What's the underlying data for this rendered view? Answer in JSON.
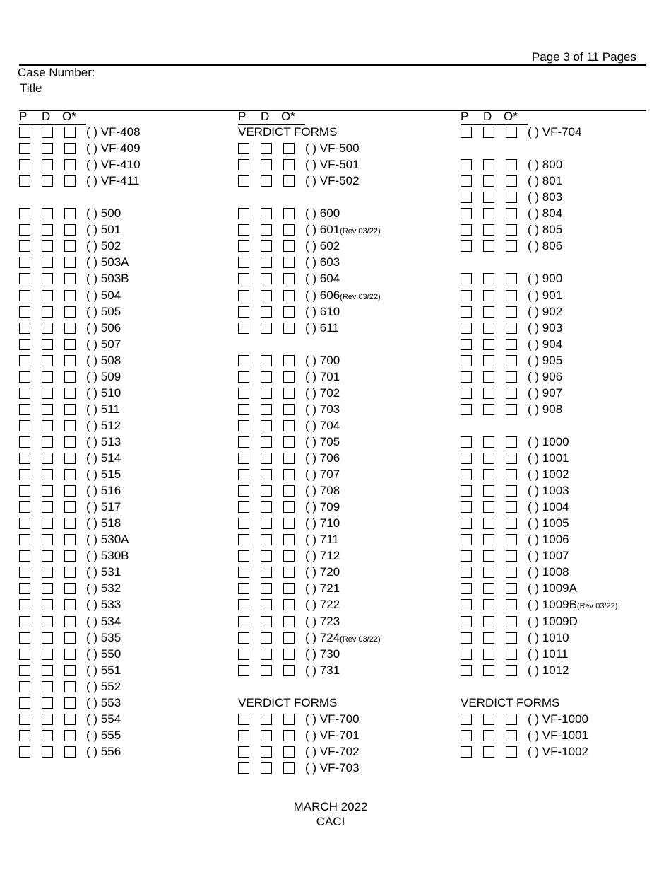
{
  "page_label": "Page 3 of 11 Pages",
  "case_number_label": "Case Number:",
  "title_label": "Title",
  "column_headers": {
    "p": "P",
    "d": "D",
    "o": "O*"
  },
  "columns": [
    [
      {
        "code": "VF-408"
      },
      {
        "code": "VF-409"
      },
      {
        "code": "VF-410"
      },
      {
        "code": "VF-411"
      },
      null,
      {
        "code": "500"
      },
      {
        "code": "501"
      },
      {
        "code": "502"
      },
      {
        "code": "503A"
      },
      {
        "code": "503B"
      },
      {
        "code": "504"
      },
      {
        "code": "505"
      },
      {
        "code": "506"
      },
      {
        "code": "507"
      },
      {
        "code": "508"
      },
      {
        "code": "509"
      },
      {
        "code": "510"
      },
      {
        "code": "511"
      },
      {
        "code": "512"
      },
      {
        "code": "513"
      },
      {
        "code": "514"
      },
      {
        "code": "515"
      },
      {
        "code": "516"
      },
      {
        "code": "517"
      },
      {
        "code": "518"
      },
      {
        "code": "530A"
      },
      {
        "code": "530B"
      },
      {
        "code": "531"
      },
      {
        "code": "532"
      },
      {
        "code": "533"
      },
      {
        "code": "534"
      },
      {
        "code": "535"
      },
      {
        "code": "550"
      },
      {
        "code": "551"
      },
      {
        "code": "552"
      },
      {
        "code": "553"
      },
      {
        "code": "554"
      },
      {
        "code": "555"
      },
      {
        "code": "556"
      }
    ],
    [
      {
        "heading": "VERDICT FORMS"
      },
      {
        "code": "VF-500"
      },
      {
        "code": "VF-501"
      },
      {
        "code": "VF-502"
      },
      null,
      {
        "code": "600"
      },
      {
        "code": "601",
        "rev": "(Rev 03/22)"
      },
      {
        "code": "602"
      },
      {
        "code": "603"
      },
      {
        "code": "604"
      },
      {
        "code": "606",
        "rev": "(Rev 03/22)"
      },
      {
        "code": "610"
      },
      {
        "code": "611"
      },
      null,
      {
        "code": "700"
      },
      {
        "code": "701"
      },
      {
        "code": "702"
      },
      {
        "code": "703"
      },
      {
        "code": "704"
      },
      {
        "code": "705"
      },
      {
        "code": "706"
      },
      {
        "code": "707"
      },
      {
        "code": "708"
      },
      {
        "code": "709"
      },
      {
        "code": "710"
      },
      {
        "code": "711"
      },
      {
        "code": "712"
      },
      {
        "code": "720"
      },
      {
        "code": "721"
      },
      {
        "code": "722"
      },
      {
        "code": "723"
      },
      {
        "code": "724",
        "rev": "(Rev 03/22)"
      },
      {
        "code": "730"
      },
      {
        "code": "731"
      },
      null,
      {
        "heading": "VERDICT FORMS"
      },
      {
        "code": "VF-700"
      },
      {
        "code": "VF-701"
      },
      {
        "code": "VF-702"
      },
      {
        "code": "VF-703"
      }
    ],
    [
      {
        "code": "VF-704"
      },
      null,
      {
        "code": "800"
      },
      {
        "code": "801"
      },
      {
        "code": "803"
      },
      {
        "code": "804"
      },
      {
        "code": "805"
      },
      {
        "code": "806"
      },
      null,
      {
        "code": "900"
      },
      {
        "code": "901"
      },
      {
        "code": "902"
      },
      {
        "code": "903"
      },
      {
        "code": "904"
      },
      {
        "code": "905"
      },
      {
        "code": "906"
      },
      {
        "code": "907"
      },
      {
        "code": "908"
      },
      null,
      {
        "code": "1000"
      },
      {
        "code": "1001"
      },
      {
        "code": "1002"
      },
      {
        "code": "1003"
      },
      {
        "code": "1004"
      },
      {
        "code": "1005"
      },
      {
        "code": "1006"
      },
      {
        "code": "1007"
      },
      {
        "code": "1008"
      },
      {
        "code": "1009A"
      },
      {
        "code": "1009B",
        "rev": "(Rev 03/22)"
      },
      {
        "code": "1009D"
      },
      {
        "code": "1010"
      },
      {
        "code": "1011"
      },
      {
        "code": "1012"
      },
      null,
      {
        "heading": "VERDICT FORMS"
      },
      {
        "code": "VF-1000"
      },
      {
        "code": "VF-1001"
      },
      {
        "code": "VF-1002"
      }
    ]
  ],
  "footer": {
    "date": "MARCH 2022",
    "org": "CACI"
  }
}
